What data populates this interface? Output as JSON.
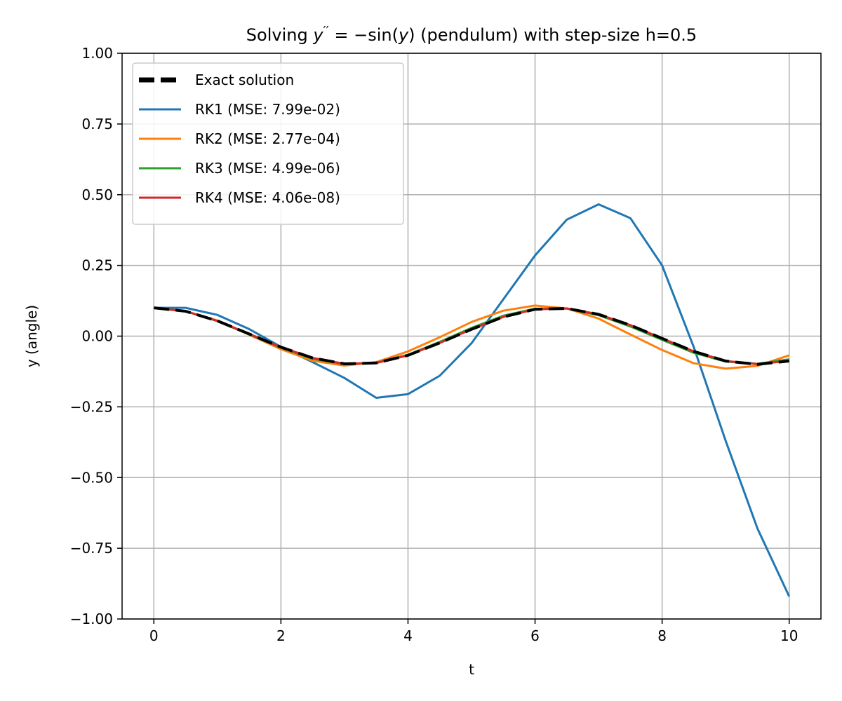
{
  "chart_data": {
    "type": "line",
    "title_parts": [
      "Solving ",
      "y",
      "′′",
      " = −sin(",
      "y",
      ") (pendulum) with step-size h=0.5"
    ],
    "xlabel": "t",
    "ylabel": "y (angle)",
    "xlim": [
      -0.5,
      10.5
    ],
    "ylim": [
      -1.0,
      1.0
    ],
    "xticks": [
      0,
      2,
      4,
      6,
      8,
      10
    ],
    "xtick_labels": [
      "0",
      "2",
      "4",
      "6",
      "8",
      "10"
    ],
    "yticks": [
      -1.0,
      -0.75,
      -0.5,
      -0.25,
      0.0,
      0.25,
      0.5,
      0.75,
      1.0
    ],
    "ytick_labels": [
      "−1.00",
      "−0.75",
      "−0.50",
      "−0.25",
      "0.00",
      "0.25",
      "0.50",
      "0.75",
      "1.00"
    ],
    "grid": true,
    "legend_position": "upper-left",
    "x": [
      0,
      0.5,
      1,
      1.5,
      2,
      2.5,
      3,
      3.5,
      4,
      4.5,
      5,
      5.5,
      6,
      6.5,
      7,
      7.5,
      8,
      8.5,
      9,
      9.5,
      10
    ],
    "series": [
      {
        "name": "Exact solution",
        "color": "#000000",
        "style": "dashed",
        "values": [
          0.1,
          0.088,
          0.054,
          0.008,
          -0.039,
          -0.077,
          -0.098,
          -0.095,
          -0.068,
          -0.024,
          0.024,
          0.068,
          0.095,
          0.098,
          0.077,
          0.039,
          -0.008,
          -0.054,
          -0.088,
          -0.1,
          -0.088
        ]
      },
      {
        "name": "RK1 (MSE: 7.99e-02)",
        "color": "#1f77b4",
        "style": "solid",
        "values": [
          0.1,
          0.1,
          0.075,
          0.025,
          -0.038,
          -0.092,
          -0.148,
          -0.218,
          -0.205,
          -0.14,
          -0.025,
          0.13,
          0.285,
          0.412,
          0.466,
          0.417,
          0.25,
          -0.04,
          -0.37,
          -0.68,
          -0.92
        ]
      },
      {
        "name": "RK2 (MSE: 2.77e-04)",
        "color": "#ff7f0e",
        "style": "solid",
        "values": [
          0.1,
          0.088,
          0.055,
          0.005,
          -0.046,
          -0.087,
          -0.104,
          -0.092,
          -0.054,
          -0.004,
          0.05,
          0.09,
          0.108,
          0.098,
          0.062,
          0.006,
          -0.049,
          -0.096,
          -0.115,
          -0.105,
          -0.068
        ]
      },
      {
        "name": "RK3 (MSE: 4.99e-06)",
        "color": "#2ca02c",
        "style": "solid",
        "values": [
          0.1,
          0.088,
          0.053,
          0.006,
          -0.041,
          -0.08,
          -0.099,
          -0.094,
          -0.066,
          -0.02,
          0.029,
          0.072,
          0.097,
          0.098,
          0.074,
          0.034,
          -0.013,
          -0.059,
          -0.09,
          -0.098,
          -0.082
        ]
      },
      {
        "name": "RK4 (MSE: 4.06e-08)",
        "color": "#d62728",
        "style": "solid",
        "values": [
          0.1,
          0.088,
          0.054,
          0.008,
          -0.039,
          -0.077,
          -0.098,
          -0.095,
          -0.068,
          -0.024,
          0.024,
          0.068,
          0.095,
          0.098,
          0.077,
          0.039,
          -0.008,
          -0.054,
          -0.088,
          -0.099,
          -0.087
        ]
      }
    ]
  }
}
